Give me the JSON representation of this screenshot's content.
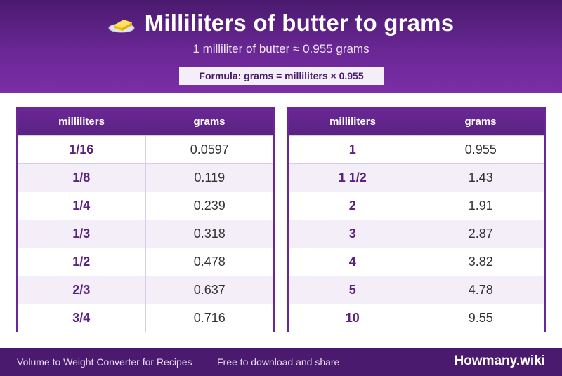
{
  "header": {
    "icon": "butter-icon",
    "title": "Milliliters of butter to grams",
    "subtitle": "1 milliliter of butter ≈ 0.955 grams",
    "formula": "Formula: grams = milliliters × 0.955"
  },
  "tables": [
    {
      "columns": [
        "milliliters",
        "grams"
      ],
      "rows": [
        [
          "1/16",
          "0.0597"
        ],
        [
          "1/8",
          "0.119"
        ],
        [
          "1/4",
          "0.239"
        ],
        [
          "1/3",
          "0.318"
        ],
        [
          "1/2",
          "0.478"
        ],
        [
          "2/3",
          "0.637"
        ],
        [
          "3/4",
          "0.716"
        ]
      ]
    },
    {
      "columns": [
        "milliliters",
        "grams"
      ],
      "rows": [
        [
          "1",
          "0.955"
        ],
        [
          "1 1/2",
          "1.43"
        ],
        [
          "2",
          "1.91"
        ],
        [
          "3",
          "2.87"
        ],
        [
          "4",
          "3.82"
        ],
        [
          "5",
          "4.78"
        ],
        [
          "10",
          "9.55"
        ]
      ]
    }
  ],
  "footer": {
    "left_text": "Volume to Weight Converter for Recipes",
    "mid_text": "Free to download and share",
    "brand": "Howmany.wiki"
  },
  "colors": {
    "primary": "#6a2795",
    "dark": "#4a1a6e",
    "row_alt": "#f3eef8"
  }
}
